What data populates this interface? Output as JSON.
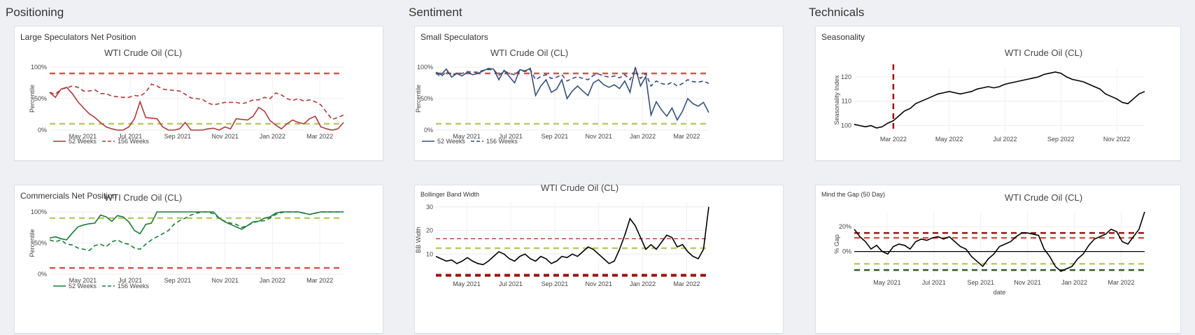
{
  "sections": {
    "positioning": "Positioning",
    "sentiment": "Sentiment",
    "technicals": "Technicals"
  },
  "colors": {
    "red": "#b03a3a",
    "dash_red": "#d9534f",
    "dash_green": "#b5cc6a",
    "navy": "#34507a",
    "green": "#1e7a3a",
    "dark_red": "#a01010",
    "dark_green": "#2e5a2e"
  },
  "cards": [
    {
      "key": "large_spec",
      "title": "Large Speculators Net Position"
    },
    {
      "key": "commercials",
      "title": "Commercials Net Position"
    },
    {
      "key": "small_spec",
      "title": "Small Speculators"
    },
    {
      "key": "bbw",
      "title": "Bollinger Band Width"
    },
    {
      "key": "seasonality",
      "title": "Seasonality"
    },
    {
      "key": "gap",
      "title": "Mind the Gap (50 Day)"
    }
  ],
  "chart_data": [
    {
      "id": "large_spec",
      "type": "line",
      "title": "WTI Crude Oil (CL)",
      "ylabel": "Percentile",
      "ylim": [
        0,
        100
      ],
      "yticks": [
        "0%",
        "50%",
        "100%"
      ],
      "xticks": [
        "May 2021",
        "Jul 2021",
        "Sep 2021",
        "Nov 2021",
        "Jan 2022",
        "Mar 2022"
      ],
      "x_range": [
        0,
        52
      ],
      "ref_lines": [
        {
          "y": 90,
          "color": "dash_red"
        },
        {
          "y": 10,
          "color": "dash_green"
        }
      ],
      "series": [
        {
          "name": "52 Weeks",
          "style": "solid",
          "color": "red",
          "values": [
            60,
            52,
            65,
            68,
            58,
            45,
            35,
            26,
            20,
            12,
            5,
            2,
            0,
            0,
            5,
            18,
            45,
            20,
            19,
            18,
            5,
            0,
            0,
            2,
            12,
            0,
            0,
            0,
            2,
            3,
            0,
            5,
            2,
            18,
            17,
            16,
            22,
            36,
            30,
            15,
            8,
            2,
            10,
            16,
            12,
            10,
            18,
            22,
            5,
            2,
            0,
            2,
            12
          ]
        },
        {
          "name": "156 Weeks",
          "style": "dash",
          "color": "red",
          "values": [
            60,
            57,
            65,
            67,
            70,
            68,
            62,
            62,
            64,
            58,
            58,
            54,
            53,
            52,
            52,
            55,
            54,
            60,
            73,
            70,
            65,
            64,
            63,
            62,
            57,
            51,
            50,
            49,
            43,
            40,
            42,
            44,
            44,
            44,
            42,
            44,
            48,
            48,
            52,
            50,
            59,
            56,
            50,
            47,
            50,
            46,
            48,
            45,
            40,
            28,
            17,
            20,
            24
          ]
        }
      ]
    },
    {
      "id": "commercials",
      "type": "line",
      "title": "WTI Crude Oil (CL)",
      "ylabel": "Percentile",
      "ylim": [
        0,
        100
      ],
      "yticks": [
        "0%",
        "50%",
        "100%"
      ],
      "xticks": [
        "May 2021",
        "Jul 2021",
        "Sep 2021",
        "Nov 2021",
        "Jan 2022",
        "Mar 2022"
      ],
      "x_range": [
        0,
        52
      ],
      "ref_lines": [
        {
          "y": 90,
          "color": "dash_green"
        },
        {
          "y": 10,
          "color": "dash_red"
        }
      ],
      "series": [
        {
          "name": "52 Weeks",
          "style": "solid",
          "color": "green",
          "values": [
            58,
            60,
            57,
            55,
            66,
            76,
            79,
            81,
            82,
            95,
            92,
            85,
            94,
            92,
            84,
            70,
            65,
            80,
            82,
            100,
            100,
            100,
            100,
            100,
            100,
            100,
            100,
            100,
            100,
            100,
            90,
            84,
            80,
            76,
            72,
            78,
            84,
            85,
            90,
            92,
            98,
            100,
            100,
            100,
            100,
            98,
            96,
            98,
            100,
            100,
            100,
            100,
            100
          ]
        },
        {
          "name": "156 Weeks",
          "style": "dash",
          "color": "green",
          "values": [
            55,
            52,
            55,
            48,
            47,
            42,
            40,
            38,
            46,
            48,
            44,
            52,
            55,
            50,
            48,
            42,
            40,
            48,
            55,
            60,
            65,
            70,
            80,
            86,
            90,
            95,
            98,
            100,
            100,
            97,
            90,
            85,
            82,
            80,
            75,
            78,
            83,
            85,
            86,
            90,
            96,
            99,
            100,
            100,
            100,
            98,
            96,
            98,
            100,
            100,
            100,
            100,
            100
          ]
        }
      ]
    },
    {
      "id": "small_spec",
      "type": "line",
      "title": "WTI Crude Oil (CL)",
      "ylabel": "Percentile",
      "ylim": [
        0,
        100
      ],
      "yticks": [
        "0%",
        "50%",
        "100%"
      ],
      "xticks": [
        "May 2021",
        "Jul 2021",
        "Sep 2021",
        "Nov 2021",
        "Jan 2022",
        "Mar 2022"
      ],
      "x_range": [
        0,
        52
      ],
      "ref_lines": [
        {
          "y": 90,
          "color": "dash_red"
        },
        {
          "y": 10,
          "color": "dash_green"
        }
      ],
      "series": [
        {
          "name": "52 Weeks",
          "style": "solid",
          "color": "navy",
          "values": [
            92,
            88,
            97,
            84,
            90,
            86,
            92,
            88,
            90,
            94,
            98,
            97,
            80,
            95,
            85,
            75,
            96,
            94,
            98,
            55,
            70,
            80,
            60,
            65,
            80,
            50,
            62,
            70,
            62,
            55,
            75,
            80,
            72,
            68,
            72,
            66,
            78,
            60,
            100,
            70,
            85,
            24,
            45,
            32,
            22,
            35,
            16,
            30,
            50,
            42,
            38,
            44,
            28
          ]
        },
        {
          "name": "156 Weeks",
          "style": "dash",
          "color": "navy",
          "values": [
            90,
            85,
            93,
            88,
            90,
            90,
            93,
            92,
            92,
            95,
            96,
            96,
            87,
            94,
            90,
            88,
            95,
            93,
            96,
            80,
            85,
            88,
            82,
            84,
            88,
            78,
            82,
            85,
            82,
            80,
            87,
            89,
            86,
            84,
            86,
            83,
            88,
            80,
            96,
            82,
            90,
            70,
            78,
            74,
            72,
            76,
            70,
            74,
            80,
            77,
            76,
            78,
            74
          ]
        }
      ]
    },
    {
      "id": "bbw",
      "type": "line",
      "title": "WTI Crude Oil (CL)",
      "ylabel": "BB Width",
      "ylim": [
        0,
        32
      ],
      "yticks": [
        "10",
        "20",
        "30"
      ],
      "xticks": [
        "May 2021",
        "Jul 2021",
        "Sep 2021",
        "Nov 2021",
        "Jan 2022",
        "Mar 2022"
      ],
      "x_range": [
        0,
        52
      ],
      "ref_lines": [
        {
          "y": 16.5,
          "color": "dark_red",
          "thin": true
        },
        {
          "y": 12.5,
          "color": "dash_green"
        },
        {
          "y": 1,
          "color": "dark_red",
          "thick": true
        }
      ],
      "series": [
        {
          "name": "",
          "style": "solid",
          "color": "black",
          "values": [
            9,
            8,
            7,
            7.5,
            6,
            7,
            8.5,
            7,
            6,
            5.5,
            7,
            9,
            11,
            10,
            8,
            7,
            9,
            10,
            8,
            7,
            9,
            8,
            6,
            7,
            9,
            8.5,
            10,
            9,
            11,
            13,
            12,
            10,
            8,
            6,
            7,
            12,
            18,
            25,
            22,
            17,
            12,
            14,
            12,
            15,
            18,
            17,
            13,
            14,
            11,
            9,
            8,
            12,
            30
          ]
        }
      ]
    },
    {
      "id": "seasonality",
      "type": "line",
      "title": "WTI Crude Oil (CL)",
      "ylabel": "Seasonality Index",
      "ylim": [
        97,
        124
      ],
      "yticks": [
        "100",
        "110",
        "120"
      ],
      "xticks": [
        "Mar 2022",
        "May 2022",
        "Jul 2022",
        "Sep 2022",
        "Nov 2022"
      ],
      "x_range": [
        0,
        52
      ],
      "vline": {
        "x": 7,
        "color": "dark_red"
      },
      "series": [
        {
          "name": "",
          "style": "solid",
          "color": "black",
          "values": [
            100.5,
            100,
            99.5,
            100,
            99,
            99.5,
            101,
            102,
            104,
            106,
            107,
            109,
            110,
            111,
            112,
            113,
            113.5,
            114,
            113.5,
            113,
            113.5,
            114,
            115,
            115.5,
            116,
            115.5,
            116,
            117,
            117.5,
            118,
            118.5,
            119,
            119.5,
            120,
            121,
            121.5,
            122,
            121.5,
            120,
            119,
            118.5,
            118,
            117,
            116,
            115,
            113,
            112,
            111,
            109.5,
            109,
            111,
            113,
            114
          ]
        }
      ]
    },
    {
      "id": "gap",
      "type": "line",
      "title": "WTI Crude Oil (CL)",
      "ylabel": "% Gap",
      "xlabel": "date",
      "ylim": [
        -20,
        32
      ],
      "yticks": [
        "0%",
        "20%"
      ],
      "xticks": [
        "May 2021",
        "Jul 2021",
        "Sep 2021",
        "Nov 2021",
        "Jan 2022",
        "Mar 2022"
      ],
      "x_range": [
        0,
        52
      ],
      "ref_lines": [
        {
          "y": 15,
          "color": "dark_red"
        },
        {
          "y": 11,
          "color": "dash_red"
        },
        {
          "y": -10,
          "color": "dash_green"
        },
        {
          "y": -15,
          "color": "dark_green"
        },
        {
          "y": 0,
          "color": "black",
          "thin": true
        }
      ],
      "series": [
        {
          "name": "",
          "style": "solid",
          "color": "black",
          "values": [
            18,
            12,
            8,
            2,
            5,
            0,
            -2,
            4,
            6,
            5,
            2,
            8,
            10,
            9,
            11,
            12,
            10,
            12,
            8,
            4,
            2,
            -4,
            -8,
            -12,
            -6,
            -2,
            4,
            6,
            8,
            12,
            15,
            15,
            14,
            13,
            2,
            -4,
            -12,
            -16,
            -14,
            -12,
            -6,
            -2,
            5,
            10,
            12,
            14,
            18,
            16,
            8,
            6,
            12,
            18,
            32
          ]
        }
      ]
    }
  ]
}
